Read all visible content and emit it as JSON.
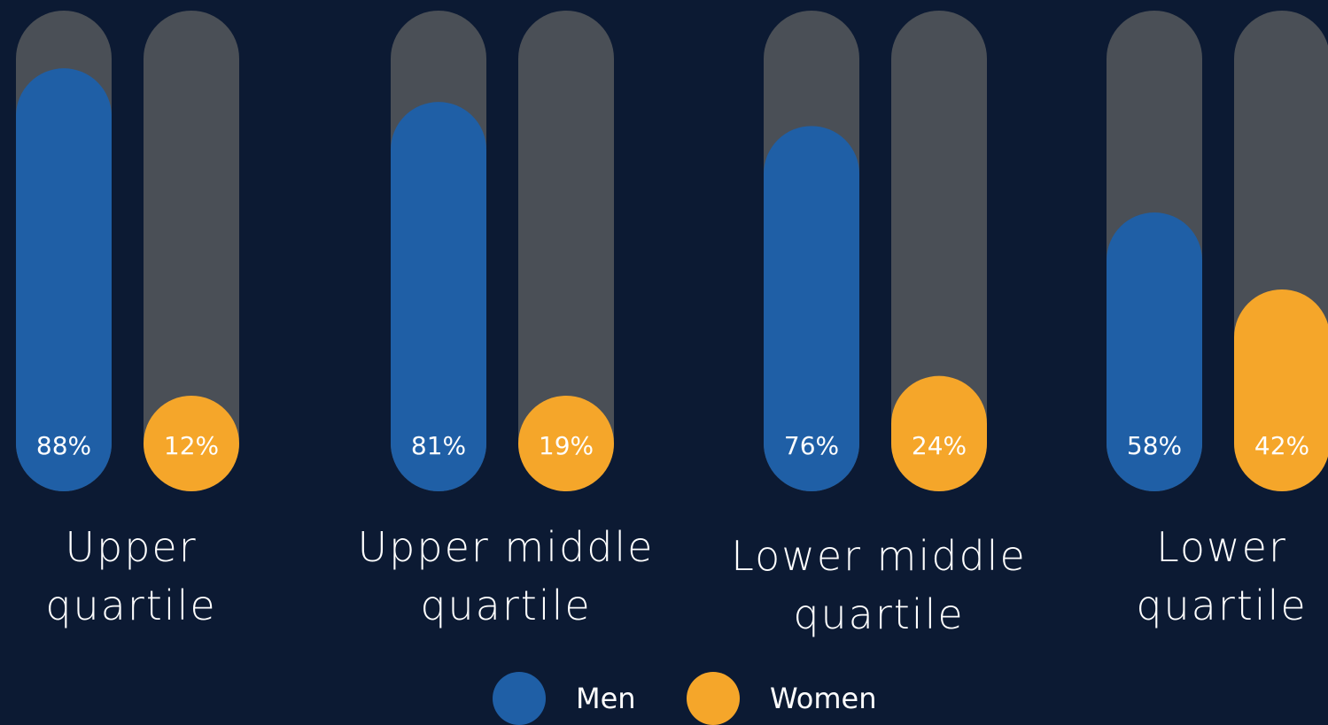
{
  "chart_data": {
    "type": "bar",
    "categories": [
      "Upper\nquartile",
      "Upper middle\nquartile",
      "Lower middle\nquartile",
      "Lower\nquartile"
    ],
    "series": [
      {
        "name": "Men",
        "color": "#1f5fa6",
        "values": [
          88,
          81,
          76,
          58
        ],
        "value_labels": [
          "88%",
          "81%",
          "76%",
          "58%"
        ]
      },
      {
        "name": "Women",
        "color": "#f5a62a",
        "values": [
          12,
          19,
          24,
          42
        ],
        "value_labels": [
          "12%",
          "19%",
          "24%",
          "42%"
        ]
      }
    ],
    "ylim": [
      0,
      100
    ],
    "track_color": "#4a4f56",
    "background": "#0c1a33"
  }
}
